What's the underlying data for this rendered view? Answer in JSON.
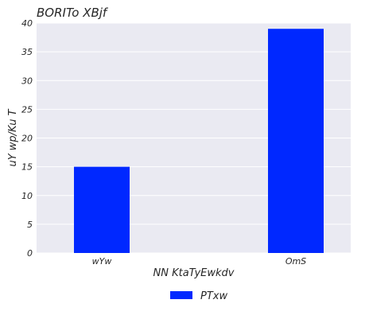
{
  "chart_data": {
    "type": "bar",
    "title": "BORITo XBjf",
    "xlabel": "NN KtaTyEwkdv",
    "ylabel": "uY wp/Ku T",
    "categories": [
      "wYw",
      "OmS"
    ],
    "series": [
      {
        "name": "PTxw",
        "values": [
          15,
          39
        ],
        "color": "#0028ff"
      }
    ],
    "ylim": [
      0,
      40
    ],
    "yticks": [
      0,
      5,
      10,
      15,
      20,
      25,
      30,
      35,
      40
    ],
    "grid": true,
    "legend_position": "bottom-center",
    "background_color": "#eaeaf2"
  }
}
